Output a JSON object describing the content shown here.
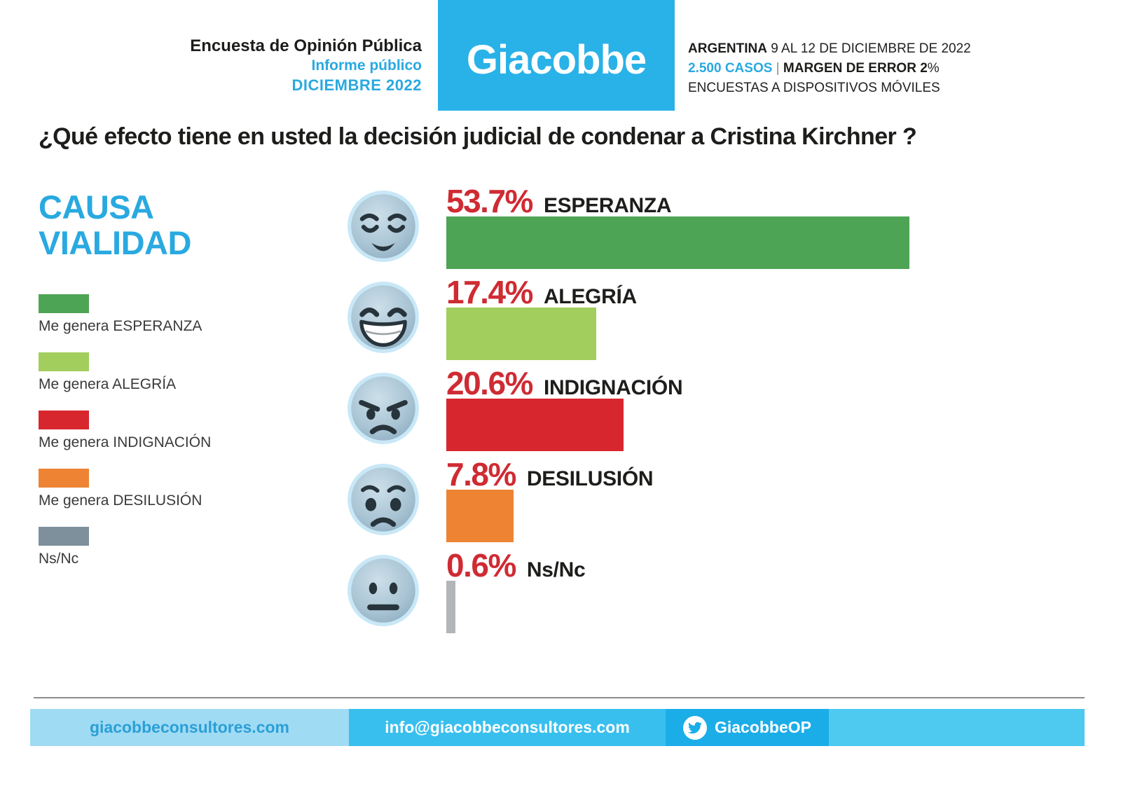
{
  "header": {
    "left": {
      "line1": "Encuesta de Opinión Pública",
      "line2": "Informe público",
      "line3": "DICIEMBRE 2022"
    },
    "logo": "Giacobbe",
    "right": {
      "country": "ARGENTINA",
      "dates": " 9 AL 12 DE DICIEMBRE DE 2022",
      "cases": "2.500 CASOS",
      "sep": " | ",
      "margin": "MARGEN DE ERROR 2",
      "pct": "%",
      "method": "ENCUESTAS A DISPOSITIVOS MÓVILES"
    }
  },
  "question": "¿Qué efecto tiene en usted la decisión judicial de condenar a Cristina Kirchner ?",
  "topic": {
    "line1": "CAUSA",
    "line2": "VIALIDAD"
  },
  "legend": [
    {
      "label": "Me genera ESPERANZA",
      "color": "#4ea455"
    },
    {
      "label": "Me genera ALEGRÍA",
      "color": "#a2ce5d"
    },
    {
      "label": "Me genera INDIGNACIÓN",
      "color": "#d8262e"
    },
    {
      "label": "Me genera DESILUSIÓN",
      "color": "#ee8433"
    },
    {
      "label": "Ns/Nc",
      "color": "#7e909b"
    }
  ],
  "rows": [
    {
      "value": "53.7%",
      "label": "ESPERANZA",
      "emoji": "relieved-face-icon"
    },
    {
      "value": "17.4%",
      "label": "ALEGRÍA",
      "emoji": "grinning-face-icon"
    },
    {
      "value": "20.6%",
      "label": "INDIGNACIÓN",
      "emoji": "angry-face-icon"
    },
    {
      "value": "7.8%",
      "label": "DESILUSIÓN",
      "emoji": "worried-face-icon"
    },
    {
      "value": "0.6%",
      "label": "Ns/Nc",
      "emoji": "neutral-face-icon"
    }
  ],
  "chart_data": {
    "type": "bar",
    "orientation": "horizontal",
    "title": "¿Qué efecto tiene en usted la decisión judicial de condenar a Cristina Kirchner ?",
    "subtitle": "CAUSA VIALIDAD",
    "categories": [
      "ESPERANZA",
      "ALEGRÍA",
      "INDIGNACIÓN",
      "DESILUSIÓN",
      "Ns/Nc"
    ],
    "values": [
      53.7,
      17.4,
      20.6,
      7.8,
      0.6
    ],
    "colors": [
      "#4ea455",
      "#a2ce5d",
      "#d8262e",
      "#ee8433",
      "#b2b6b9"
    ],
    "value_labels": [
      "53.7%",
      "17.4%",
      "20.6%",
      "7.8%",
      "0.6%"
    ],
    "legend_entries": [
      "Me genera ESPERANZA",
      "Me genera ALEGRÍA",
      "Me genera INDIGNACIÓN",
      "Me genera DESILUSIÓN",
      "Ns/Nc"
    ],
    "legend_position": "left",
    "grid": false,
    "xlim": [
      0,
      60
    ]
  },
  "footer": {
    "website": "giacobbeconsultores.com",
    "email": "info@giacobbeconsultores.com",
    "twitter": "GiacobbeOP"
  },
  "colors": {
    "accent_cyan": "#29b2e8",
    "text_cyan": "#29a9e0",
    "text_black": "#1d1d1b",
    "number_red": "#cf2b33",
    "legend_text": "#3a3a39",
    "rule_gray": "#8c8c8c",
    "footer_bg1": "#a0dbf4",
    "footer_bg2": "#38bfee",
    "footer_bg3": "#1bade8",
    "footer_bg4": "#4ec9f0",
    "footer_text1": "#2b9fd6"
  }
}
